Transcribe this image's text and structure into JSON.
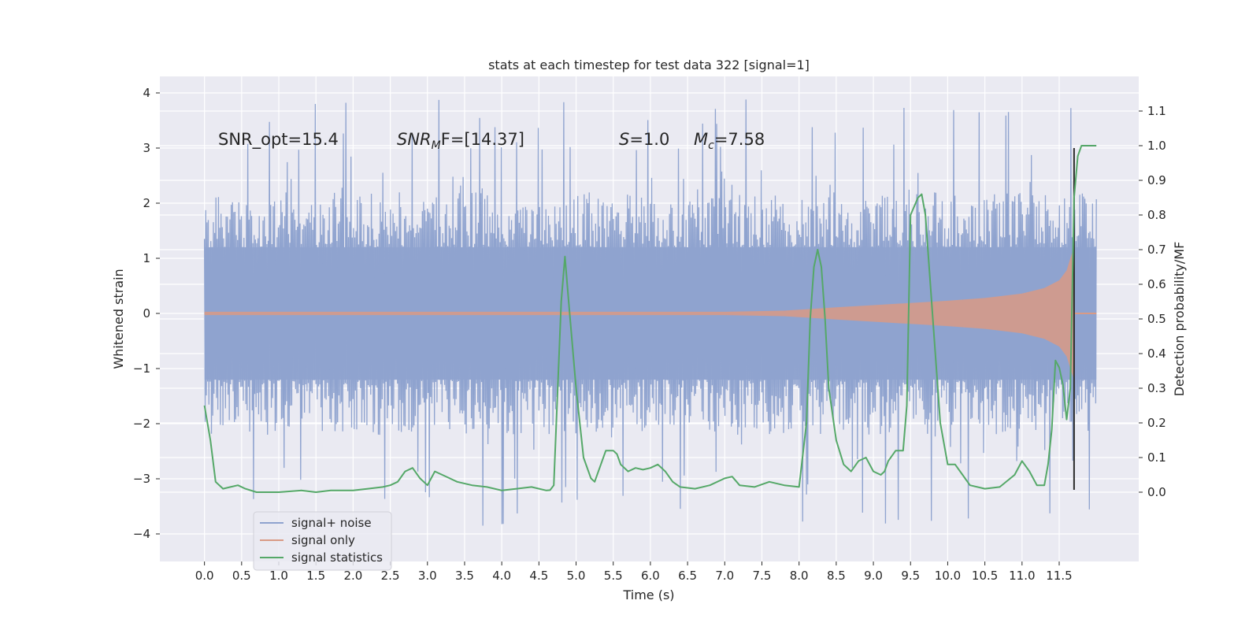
{
  "chart_data": {
    "type": "line",
    "title": "stats at each timestep for test data 322 [signal=1]",
    "xlabel": "Time (s)",
    "ylabel_left": "Whitened strain",
    "ylabel_right": "Detection probability/MF",
    "xlim": [
      -0.6,
      12.57
    ],
    "ylim_left": [
      -4.5,
      4.3
    ],
    "ylim_right": [
      -0.2,
      1.2
    ],
    "x_ticks": [
      0.0,
      0.5,
      1.0,
      1.5,
      2.0,
      2.5,
      3.0,
      3.5,
      4.0,
      4.5,
      5.0,
      5.5,
      6.0,
      6.5,
      7.0,
      7.5,
      8.0,
      8.5,
      9.0,
      9.5,
      10.0,
      10.5,
      11.0,
      11.5
    ],
    "x_tick_labels": [
      "0.0",
      "0.5",
      "1.0",
      "1.5",
      "2.0",
      "2.5",
      "3.0",
      "3.5",
      "4.0",
      "4.5",
      "5.0",
      "5.5",
      "6.0",
      "6.5",
      "7.0",
      "7.5",
      "8.0",
      "8.5",
      "9.0",
      "9.5",
      "10.0",
      "10.5",
      "11.0",
      "11.5"
    ],
    "y_left_ticks": [
      -4,
      -3,
      -2,
      -1,
      0,
      1,
      2,
      3,
      4
    ],
    "y_left_tick_labels": [
      "−4",
      "−3",
      "−2",
      "−1",
      "0",
      "1",
      "2",
      "3",
      "4"
    ],
    "y_right_ticks": [
      0.0,
      0.1,
      0.2,
      0.3,
      0.4,
      0.5,
      0.6,
      0.7,
      0.8,
      0.9,
      1.0,
      1.1
    ],
    "y_right_tick_labels": [
      "0.0",
      "0.1",
      "0.2",
      "0.3",
      "0.4",
      "0.5",
      "0.6",
      "0.7",
      "0.8",
      "0.9",
      "1.0",
      "1.1"
    ],
    "grid": true,
    "legend_position": "lower-left",
    "annotations": {
      "snr_opt": "SNR_opt=15.4",
      "snr_mf_main": "SNR",
      "snr_mf_sub": "M",
      "snr_mf_rest": "F=[14.37]",
      "s_sym": "S",
      "s_val": "=1.0",
      "mc_sym": "M",
      "mc_sub": "c",
      "mc_val": "=7.58"
    },
    "series": [
      {
        "name": "signal+ noise",
        "color": "#8fa3cf",
        "axis": "left",
        "x_range": [
          0.0,
          12.0
        ],
        "core_envelope": 1.2,
        "peak_envelope": [
          2.2,
          3.9
        ]
      },
      {
        "name": "signal only",
        "color": "#d99a85",
        "axis": "left",
        "x_range": [
          0.0,
          12.0
        ],
        "envelope": {
          "x": [
            0.0,
            4.0,
            7.0,
            7.8,
            8.5,
            9.0,
            9.5,
            10.0,
            10.5,
            11.0,
            11.3,
            11.5,
            11.6,
            11.65,
            11.7
          ],
          "y": [
            0.03,
            0.03,
            0.03,
            0.05,
            0.11,
            0.15,
            0.19,
            0.23,
            0.28,
            0.36,
            0.46,
            0.6,
            0.78,
            1.0,
            1.2
          ]
        }
      },
      {
        "name": "signal statistics",
        "color": "#55a868",
        "axis": "right",
        "x": [
          0.0,
          0.08,
          0.15,
          0.25,
          0.35,
          0.45,
          0.55,
          0.7,
          1.0,
          1.3,
          1.5,
          1.7,
          2.0,
          2.2,
          2.4,
          2.5,
          2.6,
          2.7,
          2.8,
          2.9,
          3.0,
          3.1,
          3.2,
          3.3,
          3.4,
          3.6,
          3.8,
          4.0,
          4.2,
          4.4,
          4.6,
          4.65,
          4.7,
          4.8,
          4.85,
          4.9,
          5.0,
          5.1,
          5.2,
          5.25,
          5.3,
          5.4,
          5.5,
          5.55,
          5.6,
          5.7,
          5.8,
          5.9,
          6.0,
          6.1,
          6.2,
          6.3,
          6.4,
          6.6,
          6.8,
          7.0,
          7.1,
          7.2,
          7.4,
          7.6,
          7.8,
          8.0,
          8.1,
          8.15,
          8.2,
          8.25,
          8.3,
          8.35,
          8.4,
          8.5,
          8.6,
          8.7,
          8.8,
          8.9,
          9.0,
          9.1,
          9.15,
          9.2,
          9.3,
          9.4,
          9.45,
          9.5,
          9.6,
          9.65,
          9.7,
          9.75,
          9.8,
          9.85,
          9.9,
          10.0,
          10.1,
          10.2,
          10.3,
          10.5,
          10.7,
          10.9,
          11.0,
          11.1,
          11.2,
          11.3,
          11.35,
          11.4,
          11.45,
          11.5,
          11.55,
          11.6,
          11.65,
          11.7,
          11.75,
          11.8,
          11.9,
          12.0
        ],
        "y": [
          0.25,
          0.15,
          0.03,
          0.01,
          0.015,
          0.02,
          0.01,
          0.0,
          0.0,
          0.005,
          0.0,
          0.005,
          0.005,
          0.01,
          0.015,
          0.02,
          0.03,
          0.06,
          0.07,
          0.04,
          0.02,
          0.06,
          0.05,
          0.04,
          0.03,
          0.02,
          0.015,
          0.005,
          0.01,
          0.015,
          0.005,
          0.006,
          0.02,
          0.55,
          0.68,
          0.55,
          0.3,
          0.1,
          0.04,
          0.03,
          0.06,
          0.12,
          0.12,
          0.11,
          0.08,
          0.06,
          0.07,
          0.065,
          0.07,
          0.08,
          0.06,
          0.03,
          0.015,
          0.01,
          0.02,
          0.04,
          0.045,
          0.02,
          0.015,
          0.03,
          0.02,
          0.015,
          0.2,
          0.5,
          0.65,
          0.7,
          0.65,
          0.5,
          0.3,
          0.15,
          0.08,
          0.06,
          0.09,
          0.1,
          0.06,
          0.05,
          0.06,
          0.09,
          0.12,
          0.12,
          0.25,
          0.8,
          0.85,
          0.86,
          0.8,
          0.65,
          0.5,
          0.35,
          0.2,
          0.08,
          0.08,
          0.05,
          0.02,
          0.01,
          0.015,
          0.05,
          0.09,
          0.06,
          0.02,
          0.02,
          0.08,
          0.18,
          0.38,
          0.36,
          0.31,
          0.21,
          0.3,
          0.85,
          0.97,
          1.0,
          1.0,
          1.0
        ]
      },
      {
        "name": "peak marker",
        "color": "#2a2a2a",
        "axis": "left",
        "x": 11.7,
        "y_range": [
          -3.2,
          3.0
        ]
      }
    ]
  }
}
